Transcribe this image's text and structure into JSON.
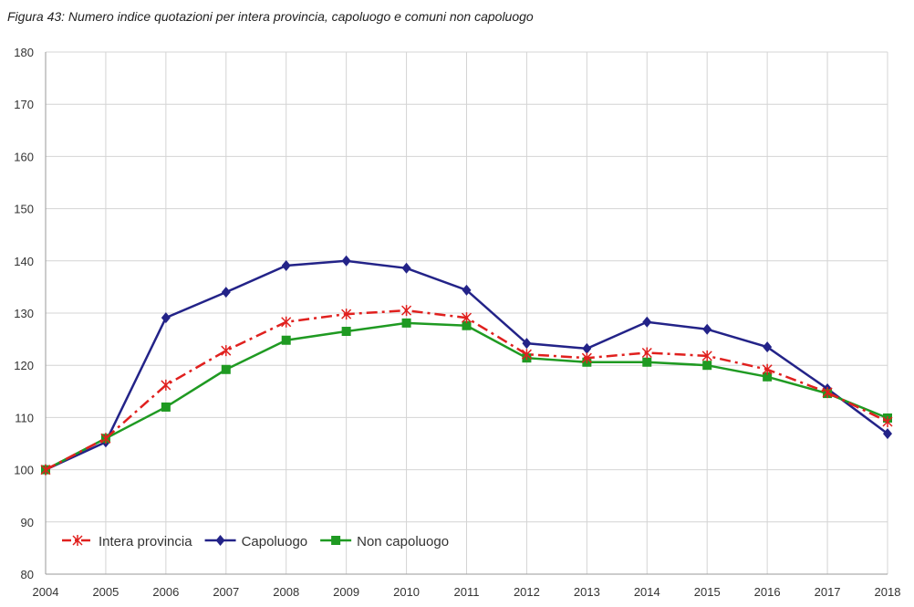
{
  "chart_data": {
    "type": "line",
    "title": "Figura 43: Numero indice quotazioni per intera provincia, capoluogo e comuni non capoluogo",
    "xlabel": "",
    "ylabel": "",
    "x": [
      2004,
      2005,
      2006,
      2007,
      2008,
      2009,
      2010,
      2011,
      2012,
      2013,
      2014,
      2015,
      2016,
      2017,
      2018
    ],
    "ylim": [
      80,
      180
    ],
    "yticks": [
      80,
      90,
      100,
      110,
      120,
      130,
      140,
      150,
      160,
      170,
      180
    ],
    "grid": true,
    "legend_position": "bottom-left",
    "series": [
      {
        "name": "Intera provincia",
        "color": "#e0201e",
        "marker": "star",
        "dash": "dashdot",
        "values": [
          100,
          106,
          116.2,
          122.8,
          128.3,
          129.8,
          130.5,
          129.1,
          122.1,
          121.4,
          122.4,
          121.8,
          119.2,
          114.8,
          109.2
        ]
      },
      {
        "name": "Capoluogo",
        "color": "#232388",
        "marker": "diamond",
        "dash": "solid",
        "values": [
          100,
          105.3,
          129.1,
          134,
          139.1,
          140,
          138.6,
          134.4,
          124.2,
          123.2,
          128.3,
          126.9,
          123.5,
          115.5,
          106.9
        ]
      },
      {
        "name": "Non capoluogo",
        "color": "#1f9a22",
        "marker": "square",
        "dash": "solid",
        "values": [
          100,
          106,
          112,
          119.2,
          124.8,
          126.5,
          128.1,
          127.6,
          121.4,
          120.6,
          120.6,
          120,
          117.8,
          114.6,
          109.9
        ]
      }
    ]
  }
}
